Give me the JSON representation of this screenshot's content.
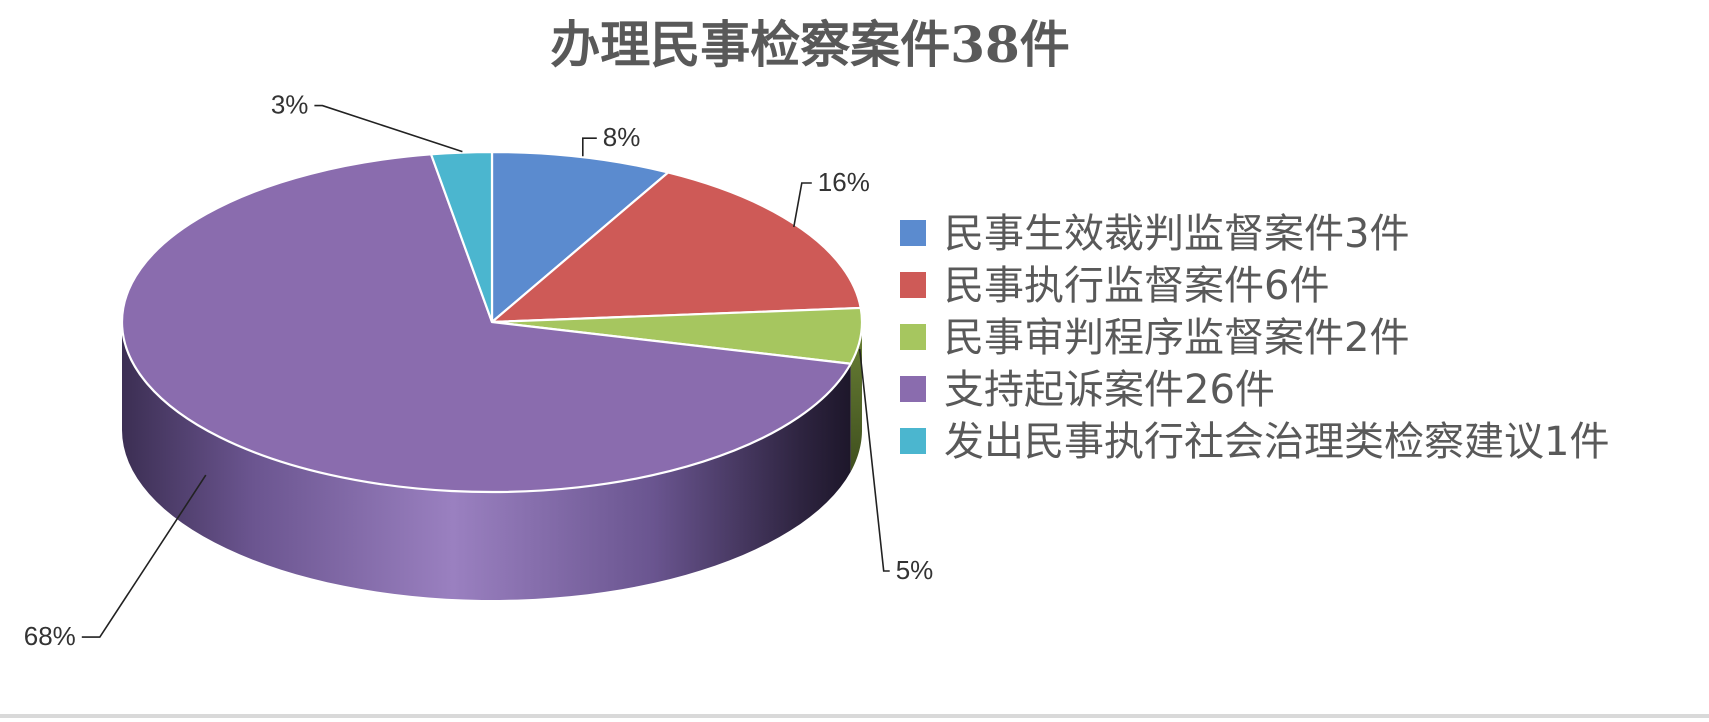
{
  "chart_data": {
    "type": "pie",
    "style": "3d",
    "title": "办理民事检察案件38件",
    "categories": [
      "民事生效裁判监督案件3件",
      "民事执行监督案件6件",
      "民事审判程序监督案件2件",
      "支持起诉案件26件",
      "发出民事执行社会治理类检察建议1件"
    ],
    "values": [
      3,
      6,
      2,
      26,
      1
    ],
    "percent_labels": [
      "8%",
      "16%",
      "5%",
      "68%",
      "3%"
    ],
    "colors": [
      "#5b8bcf",
      "#ce5a57",
      "#a6c65f",
      "#8a6cae",
      "#4bb6cf"
    ],
    "legend_position": "right",
    "grid": false
  }
}
